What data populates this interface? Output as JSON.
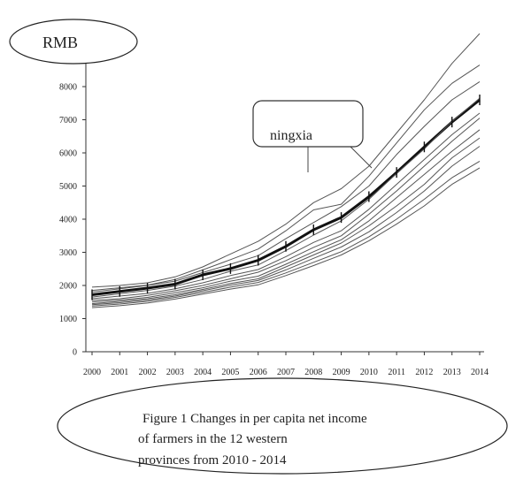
{
  "chart_data": {
    "type": "line",
    "title": "Figure 1 Changes in per capita net income of farmers in the 12 western provinces from 2010 - 2014",
    "caption_lines": [
      "Figure 1 Changes in per capita net income",
      "of farmers in the 12 western",
      "provinces from 2010 - 2014"
    ],
    "unit_label": "RMB",
    "xlabel": "",
    "ylabel": "",
    "categories": [
      "2000",
      "2001",
      "2002",
      "2003",
      "2004",
      "2005",
      "2006",
      "2007",
      "2008",
      "2009",
      "2010",
      "2011",
      "2012",
      "2013",
      "2014"
    ],
    "y_ticks": [
      0,
      1000,
      2000,
      3000,
      4000,
      5000,
      6000,
      7000,
      8000
    ],
    "ylim": [
      0,
      8800
    ],
    "grid": false,
    "annotation": "ningxia",
    "highlight_series": "ningxia",
    "series": [
      {
        "name": "ningxia",
        "highlight": true,
        "values": [
          1720,
          1820,
          1920,
          2040,
          2320,
          2510,
          2760,
          3180,
          3680,
          4050,
          4680,
          5410,
          6180,
          6930,
          7600
        ]
      },
      {
        "name": "",
        "values": [
          1950,
          2000,
          2080,
          2260,
          2560,
          2950,
          3330,
          3850,
          4500,
          4920,
          5600,
          6600,
          7600,
          8700,
          9600
        ]
      },
      {
        "name": "",
        "values": [
          1850,
          1930,
          2010,
          2180,
          2470,
          2780,
          3100,
          3650,
          4280,
          4450,
          5300,
          6300,
          7300,
          8100,
          8650
        ]
      },
      {
        "name": "",
        "values": [
          1800,
          1900,
          2000,
          2130,
          2390,
          2640,
          2900,
          3410,
          3900,
          4380,
          5000,
          5950,
          6800,
          7600,
          8150
        ]
      },
      {
        "name": "",
        "values": [
          1650,
          1750,
          1850,
          1980,
          2180,
          2430,
          2620,
          3050,
          3520,
          3950,
          4600,
          5380,
          6120,
          6950,
          7650
        ]
      },
      {
        "name": "",
        "values": [
          1600,
          1680,
          1760,
          1900,
          2080,
          2300,
          2480,
          2870,
          3300,
          3650,
          4300,
          5050,
          5800,
          6550,
          7200
        ]
      },
      {
        "name": "",
        "values": [
          1550,
          1600,
          1700,
          1840,
          2000,
          2200,
          2400,
          2750,
          3150,
          3500,
          4150,
          4850,
          5600,
          6350,
          7050
        ]
      },
      {
        "name": "",
        "values": [
          1500,
          1560,
          1640,
          1780,
          1930,
          2130,
          2280,
          2640,
          3020,
          3380,
          3950,
          4650,
          5350,
          6050,
          6700
        ]
      },
      {
        "name": "",
        "values": [
          1450,
          1520,
          1600,
          1720,
          1880,
          2060,
          2200,
          2560,
          2920,
          3280,
          3800,
          4400,
          5050,
          5850,
          6450
        ]
      },
      {
        "name": "",
        "values": [
          1420,
          1480,
          1560,
          1680,
          1840,
          2010,
          2150,
          2470,
          2820,
          3160,
          3620,
          4200,
          4850,
          5600,
          6200
        ]
      },
      {
        "name": "",
        "values": [
          1380,
          1440,
          1520,
          1640,
          1790,
          1950,
          2090,
          2380,
          2700,
          3020,
          3470,
          4000,
          4600,
          5250,
          5750
        ]
      },
      {
        "name": "",
        "values": [
          1330,
          1390,
          1470,
          1590,
          1740,
          1890,
          2020,
          2300,
          2600,
          2920,
          3350,
          3850,
          4400,
          5050,
          5550
        ]
      }
    ]
  }
}
